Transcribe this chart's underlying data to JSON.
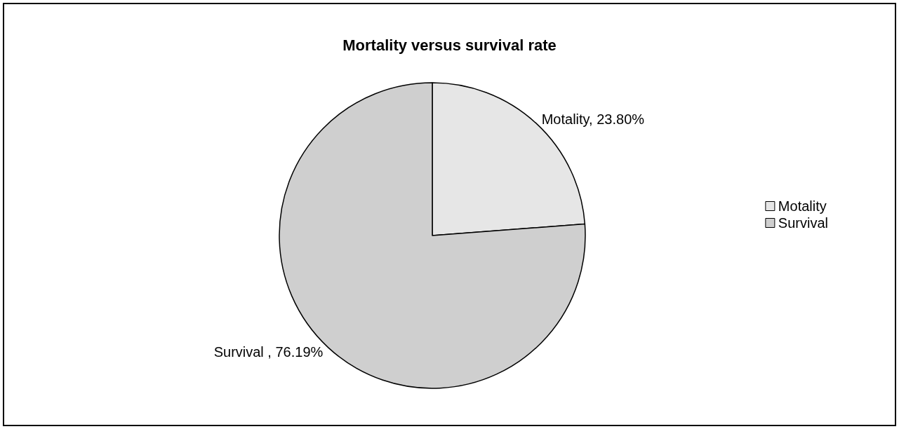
{
  "chart_data": {
    "type": "pie",
    "title": "Mortality versus survival rate",
    "categories": [
      "Motality",
      "Survival"
    ],
    "values": [
      23.8,
      76.19
    ],
    "colors": [
      "#e6e6e6",
      "#cfcfcf"
    ],
    "value_labels": [
      "Motality, 23.80%",
      "Survival , 76.19%"
    ],
    "legend": "right"
  }
}
